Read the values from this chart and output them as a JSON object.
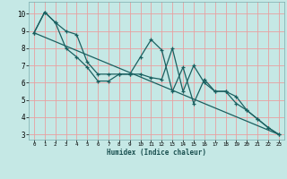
{
  "title": "",
  "xlabel": "Humidex (Indice chaleur)",
  "xlim": [
    -0.5,
    23.5
  ],
  "ylim": [
    2.7,
    10.7
  ],
  "yticks": [
    3,
    4,
    5,
    6,
    7,
    8,
    9,
    10
  ],
  "xticks": [
    0,
    1,
    2,
    3,
    4,
    5,
    6,
    7,
    8,
    9,
    10,
    11,
    12,
    13,
    14,
    15,
    16,
    17,
    18,
    19,
    20,
    21,
    22,
    23
  ],
  "background_color": "#c5e8e5",
  "grid_color": "#e8a0a0",
  "line_color": "#1a6060",
  "line1_x": [
    0,
    1,
    2,
    3,
    4,
    5,
    6,
    7,
    8,
    9,
    10,
    11,
    12,
    13,
    14,
    15,
    16,
    17,
    18,
    19,
    20,
    21,
    22,
    23
  ],
  "line1_y": [
    8.9,
    10.1,
    9.5,
    8.0,
    7.5,
    6.9,
    6.1,
    6.1,
    6.5,
    6.5,
    7.5,
    8.5,
    7.9,
    5.5,
    6.9,
    4.8,
    6.2,
    5.5,
    5.5,
    5.2,
    4.4,
    3.9,
    3.4,
    3.0
  ],
  "line2_x": [
    0,
    1,
    2,
    3,
    4,
    5,
    6,
    7,
    8,
    9,
    10,
    11,
    12,
    13,
    14,
    15,
    16,
    17,
    18,
    19,
    20,
    21,
    22,
    23
  ],
  "line2_y": [
    8.9,
    10.1,
    9.5,
    9.0,
    8.8,
    7.2,
    6.5,
    6.5,
    6.5,
    6.5,
    6.5,
    6.3,
    6.2,
    8.0,
    5.5,
    7.0,
    6.0,
    5.5,
    5.5,
    4.8,
    4.4,
    3.9,
    3.4,
    3.0
  ],
  "line3_x": [
    0,
    23
  ],
  "line3_y": [
    8.9,
    3.0
  ]
}
